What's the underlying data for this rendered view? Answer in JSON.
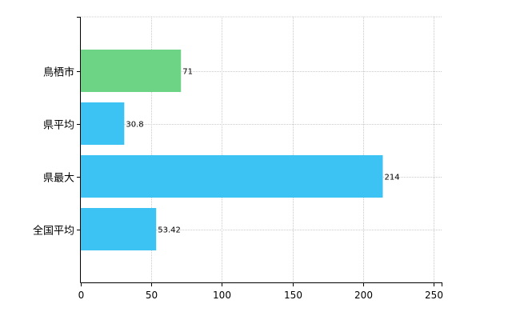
{
  "chart_data": {
    "type": "bar",
    "orientation": "horizontal",
    "categories": [
      "鳥栖市",
      "県平均",
      "県最大",
      "全国平均"
    ],
    "values": [
      71,
      30.8,
      214,
      53.42
    ],
    "value_labels": [
      "71",
      "30.8",
      "214",
      "53.42"
    ],
    "bar_colors": [
      "#6dd486",
      "#3dc3f3",
      "#3dc3f3",
      "#3dc3f3"
    ],
    "title": "",
    "xlabel": "",
    "ylabel": "",
    "xlim": [
      0,
      250
    ],
    "x_ticks": [
      0,
      50,
      100,
      150,
      200,
      250
    ],
    "x_tick_labels": [
      "0",
      "50",
      "100",
      "150",
      "200",
      "250"
    ],
    "grid": "vertical dotted",
    "legend": "none"
  },
  "colors": {
    "highlight_bar": "#6dd486",
    "default_bar": "#3dc3f3",
    "grid": "#cccccc",
    "axis": "#000000"
  }
}
